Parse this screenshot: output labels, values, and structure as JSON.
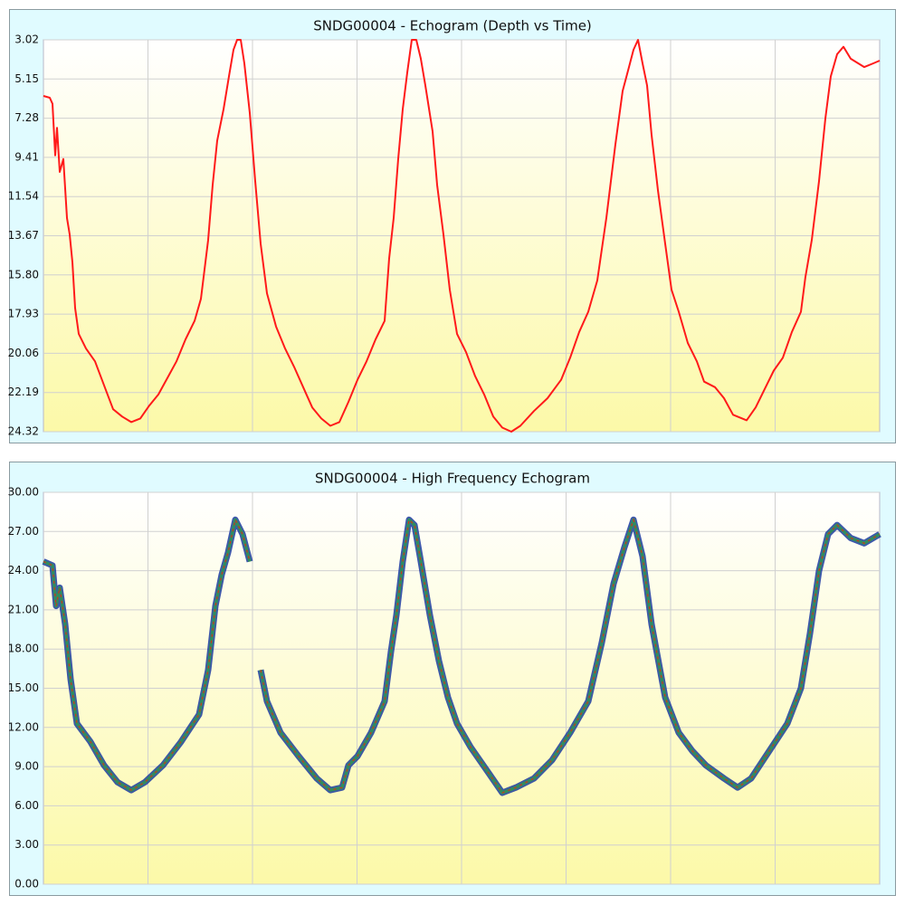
{
  "chart_data": [
    {
      "type": "line",
      "title": "SNDG00004 - Echogram (Depth vs Time)",
      "xlim": [
        0,
        924
      ],
      "ylim": [
        24.32,
        3.02
      ],
      "yticks": [
        3.02,
        5.15,
        7.28,
        9.41,
        11.54,
        13.67,
        {
          "value": 15.8,
          "label": "15.80"
        },
        17.93,
        20.06,
        22.19,
        24.32
      ],
      "grid": true,
      "series": [
        {
          "color": "#ff1a1a",
          "x": [
            0,
            7,
            10,
            13,
            15,
            18,
            22,
            26,
            29,
            32,
            35,
            39,
            47,
            57,
            67,
            77,
            87,
            97,
            107,
            117,
            127,
            137,
            147,
            157,
            167,
            174,
            182,
            187,
            192,
            199,
            205,
            210,
            214,
            218,
            222,
            228,
            234,
            240,
            247,
            257,
            267,
            277,
            287,
            297,
            307,
            317,
            327,
            337,
            347,
            357,
            367,
            377,
            382,
            387,
            392,
            397,
            402,
            407,
            412,
            417,
            422,
            430,
            435,
            442,
            449,
            457,
            467,
            477,
            487,
            497,
            507,
            517,
            527,
            542,
            557,
            572,
            582,
            592,
            602,
            612,
            622,
            632,
            640,
            647,
            652,
            657,
            662,
            667,
            672,
            679,
            687,
            694,
            702,
            712,
            722,
            730,
            742,
            752,
            762,
            777,
            787,
            797,
            807,
            817,
            827,
            837,
            842,
            849,
            857,
            864,
            870,
            877,
            884,
            892,
            907,
            917,
            924
          ],
          "values": [
            6.07,
            6.17,
            6.5,
            9.3,
            7.8,
            10.2,
            9.5,
            12.7,
            13.6,
            15.1,
            17.6,
            19.0,
            19.8,
            20.5,
            21.8,
            23.1,
            23.5,
            23.8,
            23.6,
            22.9,
            22.3,
            21.4,
            20.5,
            19.3,
            18.3,
            17.1,
            13.9,
            10.9,
            8.5,
            6.8,
            5.0,
            3.56,
            3.02,
            3.02,
            4.3,
            7.0,
            10.7,
            14.1,
            16.8,
            18.6,
            19.8,
            20.8,
            21.9,
            23.0,
            23.6,
            24.0,
            23.8,
            22.7,
            21.5,
            20.5,
            19.3,
            18.3,
            14.9,
            12.7,
            9.5,
            6.8,
            4.8,
            3.02,
            3.02,
            4.05,
            5.5,
            8.0,
            10.9,
            13.6,
            16.6,
            19.0,
            20.0,
            21.3,
            22.3,
            23.5,
            24.1,
            24.32,
            24.0,
            23.2,
            22.5,
            21.5,
            20.3,
            18.9,
            17.8,
            16.1,
            12.7,
            8.7,
            5.8,
            4.5,
            3.56,
            3.02,
            4.3,
            5.5,
            8.2,
            11.2,
            14.1,
            16.6,
            17.8,
            19.5,
            20.5,
            21.6,
            21.9,
            22.5,
            23.4,
            23.7,
            23.0,
            22.0,
            21.0,
            20.3,
            18.9,
            17.8,
            15.9,
            13.9,
            10.7,
            7.3,
            5.0,
            3.8,
            3.4,
            4.05,
            4.5,
            4.3,
            4.15
          ]
        }
      ]
    },
    {
      "type": "line",
      "title": "SNDG00004 - High Frequency Echogram",
      "xlim": [
        0,
        924
      ],
      "ylim": [
        0,
        30
      ],
      "yticks": [
        {
          "value": 0,
          "label": "0.00"
        },
        {
          "value": 3,
          "label": "3.00"
        },
        {
          "value": 6,
          "label": "6.00"
        },
        {
          "value": 9,
          "label": "9.00"
        },
        {
          "value": 12,
          "label": "12.00"
        },
        {
          "value": 15,
          "label": "15.00"
        },
        {
          "value": 18,
          "label": "18.00"
        },
        {
          "value": 21,
          "label": "21.00"
        },
        {
          "value": 24,
          "label": "24.00"
        },
        {
          "value": 27,
          "label": "27.00"
        },
        {
          "value": 30,
          "label": "30.00"
        }
      ],
      "grid": true,
      "series": [
        {
          "color": "#1b3aa0",
          "x": [
            0,
            10,
            14,
            18,
            24,
            30,
            37,
            52,
            67,
            82,
            97,
            112,
            132,
            152,
            172,
            182,
            190,
            197,
            204,
            212,
            220,
            228,
            234,
            240,
            247,
            262,
            282,
            302,
            317,
            330,
            337,
            347,
            362,
            377,
            384,
            390,
            397,
            404,
            410,
            417,
            427,
            437,
            447,
            457,
            472,
            492,
            507,
            522,
            542,
            562,
            582,
            602,
            617,
            630,
            642,
            652,
            662,
            672,
            687,
            702,
            717,
            732,
            752,
            767,
            782,
            802,
            822,
            837,
            847,
            857,
            867,
            877,
            892,
            907,
            924
          ],
          "values": [
            24.7,
            24.4,
            21.3,
            22.7,
            19.9,
            15.7,
            12.3,
            10.9,
            9.1,
            7.8,
            7.2,
            7.8,
            9.1,
            10.9,
            13.0,
            16.4,
            21.3,
            23.7,
            25.4,
            27.9,
            26.8,
            24.7,
            null,
            16.4,
            14.0,
            11.6,
            9.8,
            8.1,
            7.2,
            7.4,
            9.1,
            9.8,
            11.6,
            14.0,
            17.8,
            20.6,
            24.7,
            27.9,
            27.5,
            24.7,
            20.6,
            17.1,
            14.3,
            12.3,
            10.5,
            8.5,
            7.0,
            7.4,
            8.1,
            9.5,
            11.6,
            14.0,
            18.5,
            23.0,
            25.8,
            27.9,
            25.1,
            19.9,
            14.3,
            11.6,
            10.2,
            9.1,
            8.1,
            7.4,
            8.1,
            10.2,
            12.3,
            15.0,
            19.2,
            24.0,
            26.8,
            27.5,
            26.5,
            26.1,
            26.8
          ]
        }
      ]
    }
  ]
}
